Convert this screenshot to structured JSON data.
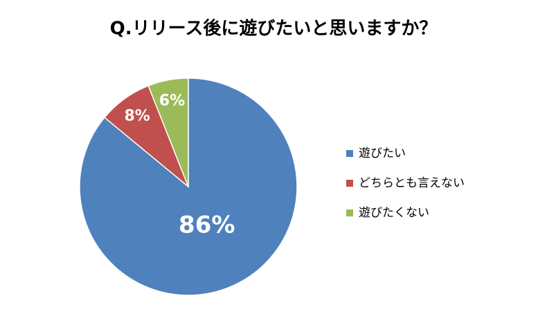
{
  "chart_data": {
    "type": "pie",
    "title": "Q.リリース後に遊びたいと思いますか？",
    "categories": [
      "遊びたい",
      "どちらとも言えない",
      "遊びたくない"
    ],
    "values": [
      86,
      8,
      6
    ],
    "value_labels": [
      "86%",
      "8%",
      "6%"
    ],
    "colors": [
      "#4f81bd",
      "#c0504d",
      "#9bbb59"
    ],
    "legend": "right"
  }
}
